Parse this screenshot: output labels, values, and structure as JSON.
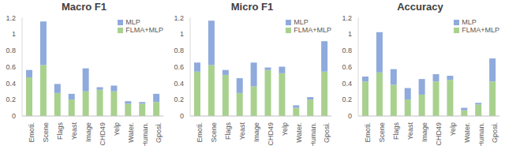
{
  "chart_data": [
    {
      "type": "bar",
      "title": "Macro F1",
      "categories": [
        "Emoti.",
        "Scene",
        "Flags",
        "Yeast",
        "Image",
        "CHD49",
        "Yelp",
        "Water.",
        "Human.",
        "Gposi."
      ],
      "series": [
        {
          "name": "FLMA+MLP",
          "color": "#a9d18e",
          "values": [
            0.47,
            0.62,
            0.28,
            0.2,
            0.3,
            0.32,
            0.3,
            0.15,
            0.15,
            0.17
          ]
        },
        {
          "name": "MLP",
          "color": "#8faadc",
          "values": [
            0.09,
            0.53,
            0.11,
            0.07,
            0.28,
            0.03,
            0.07,
            0.03,
            0.02,
            0.1
          ]
        }
      ],
      "ylim": [
        0,
        1.2
      ],
      "yticks": [
        0,
        0.2,
        0.4,
        0.6,
        0.8,
        1,
        1.2
      ],
      "stacked": true,
      "legend": "top-right"
    },
    {
      "type": "bar",
      "title": "Micro F1",
      "categories": [
        "Emoti.",
        "Scene",
        "Flags",
        "Yeast",
        "Image",
        "CHD49",
        "Yelp",
        "Water.",
        "Human.",
        "Gposi."
      ],
      "series": [
        {
          "name": "FLMA+MLP",
          "color": "#a9d18e",
          "values": [
            0.54,
            0.62,
            0.5,
            0.28,
            0.36,
            0.56,
            0.52,
            0.1,
            0.2,
            0.54
          ]
        },
        {
          "name": "MLP",
          "color": "#8faadc",
          "values": [
            0.11,
            0.54,
            0.06,
            0.18,
            0.29,
            0.03,
            0.08,
            0.03,
            0.03,
            0.37
          ]
        }
      ],
      "ylim": [
        0,
        1.2
      ],
      "yticks": [
        0,
        0.2,
        0.4,
        0.6,
        0.8,
        1,
        1.2
      ],
      "stacked": true,
      "legend": "top-right"
    },
    {
      "type": "bar",
      "title": "Accuracy",
      "categories": [
        "Emoti.",
        "Scene",
        "Flags",
        "Yeast",
        "Image",
        "CHD49",
        "Yelp",
        "Water.",
        "Human.",
        "Gposi."
      ],
      "series": [
        {
          "name": "FLMA+MLP",
          "color": "#a9d18e",
          "values": [
            0.42,
            0.53,
            0.38,
            0.2,
            0.26,
            0.42,
            0.44,
            0.07,
            0.14,
            0.42
          ]
        },
        {
          "name": "MLP",
          "color": "#8faadc",
          "values": [
            0.06,
            0.49,
            0.19,
            0.14,
            0.19,
            0.09,
            0.05,
            0.03,
            0.02,
            0.28
          ]
        }
      ],
      "ylim": [
        0,
        1.2
      ],
      "yticks": [
        0,
        0.2,
        0.4,
        0.6,
        0.8,
        1,
        1.2
      ],
      "stacked": true,
      "legend": "top-right"
    }
  ]
}
